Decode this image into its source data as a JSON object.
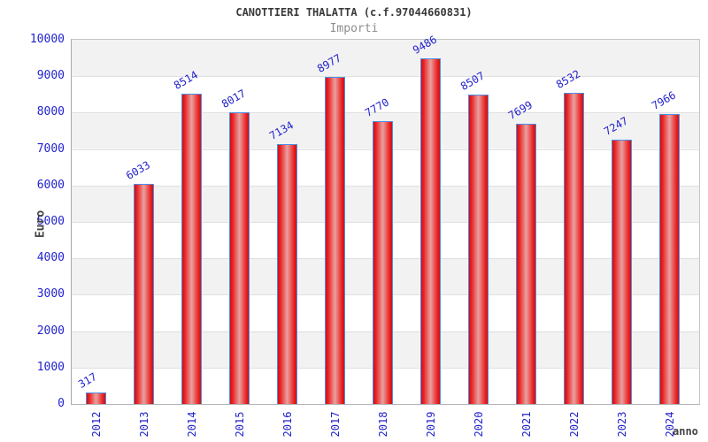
{
  "header": {
    "title": "CANOTTIERI THALATTA (c.f.97044660831)",
    "subtitle": "Importi"
  },
  "axes": {
    "y_label": "Euro",
    "x_label": "anno"
  },
  "chart_data": {
    "type": "bar",
    "title": "CANOTTIERI THALATTA (c.f.97044660831)",
    "subtitle": "Importi",
    "xlabel": "anno",
    "ylabel": "Euro",
    "categories": [
      "2012",
      "2013",
      "2014",
      "2015",
      "2016",
      "2017",
      "2018",
      "2019",
      "2020",
      "2021",
      "2022",
      "2023",
      "2024"
    ],
    "values": [
      317,
      6033,
      8514,
      8017,
      7134,
      8977,
      7770,
      9486,
      8507,
      7699,
      8532,
      7247,
      7966
    ],
    "ylim": [
      0,
      10000
    ],
    "y_ticks": [
      0,
      1000,
      2000,
      3000,
      4000,
      5000,
      6000,
      7000,
      8000,
      9000,
      10000
    ],
    "legend": "none",
    "grid": "horizontal-bands"
  },
  "colors": {
    "tick_text": "#2222cc",
    "value_label_text": "#2222cc",
    "bar_fill_edge": "#cf0f0f",
    "bar_fill_center": "#e9a1a1",
    "bar_border": "#4d8fe8",
    "band_gray": "#f2f2f2",
    "band_white": "#ffffff",
    "title_text": "#3a3a3a",
    "subtitle_text": "#8e8e8e",
    "axis_title_text": "#444444"
  }
}
